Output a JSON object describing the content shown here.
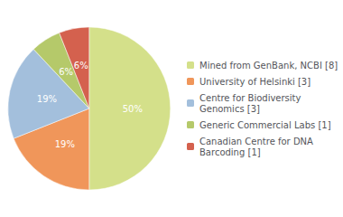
{
  "chart_data": {
    "type": "pie",
    "categories": [
      "Mined from GenBank, NCBI [8]",
      "University of Helsinki [3]",
      "Centre for Biodiversity\nGenomics [3]",
      "Generic Commercial Labs [1]",
      "Canadian Centre for DNA\nBarcoding [1]"
    ],
    "values": [
      50,
      19,
      19,
      6,
      6
    ],
    "value_labels": [
      "50%",
      "19%",
      "19%",
      "6%",
      "6%"
    ],
    "colors": [
      "#d4e08a",
      "#f0965a",
      "#a3bfdc",
      "#b5c96a",
      "#d4614e"
    ],
    "data_labels": true,
    "legend": "right"
  }
}
